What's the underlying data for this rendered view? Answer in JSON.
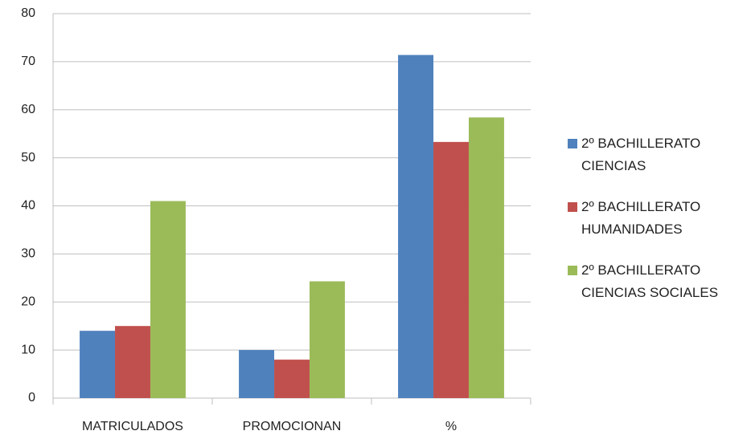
{
  "chart_data": {
    "type": "bar",
    "categories": [
      "MATRICULADOS",
      "PROMOCIONAN",
      "%"
    ],
    "series": [
      {
        "name": "2º BACHILLERATO CIENCIAS",
        "color": "#4f81bd",
        "values": [
          14,
          10,
          71.4
        ]
      },
      {
        "name": "2º BACHILLERATO HUMANIDADES",
        "color": "#c0504d",
        "values": [
          15,
          8,
          53.3
        ]
      },
      {
        "name": "2º BACHILLERATO CIENCIAS SOCIALES",
        "color": "#9bbb59",
        "values": [
          41,
          24.3,
          58.4
        ]
      }
    ],
    "ylim": [
      0,
      80
    ],
    "yticks": [
      0,
      10,
      20,
      30,
      40,
      50,
      60,
      70,
      80
    ],
    "grid": true,
    "legend": "right"
  }
}
